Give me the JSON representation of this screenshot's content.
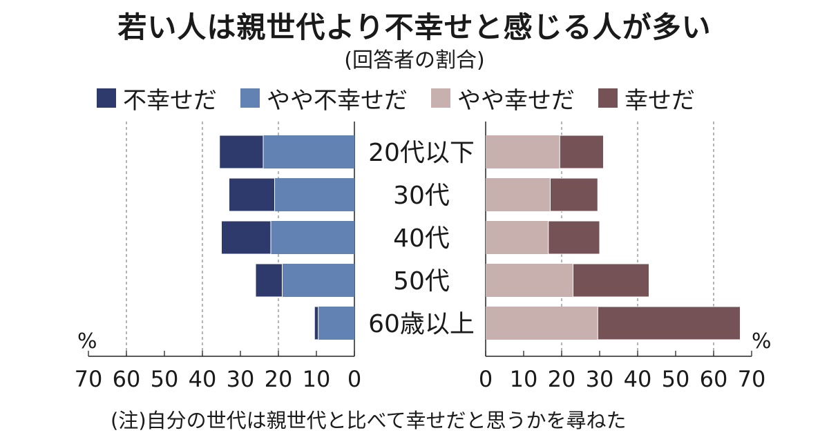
{
  "title": "若い人は親世代より不幸せと感じる人が多い",
  "subtitle": "(回答者の割合)",
  "note": "(注)自分の世代は親世代と比べて幸せだと思うかを尋ねた",
  "colors": {
    "very_unhappy": "#2e3a6b",
    "somewhat_unhappy": "#6282b3",
    "somewhat_happy": "#c7b0ad",
    "happy": "#755256"
  },
  "legend": [
    {
      "label": "不幸せだ",
      "color": "#2e3a6b"
    },
    {
      "label": "やや不幸せだ",
      "color": "#6282b3"
    },
    {
      "label": "やや幸せだ",
      "color": "#c7b0ad"
    },
    {
      "label": "幸せだ",
      "color": "#755256"
    }
  ],
  "chart_data": {
    "type": "bar",
    "orientation": "horizontal-diverging-stacked",
    "categories": [
      "20代以下",
      "30代",
      "40代",
      "50代",
      "60歳以上"
    ],
    "series": [
      {
        "name": "不幸せだ",
        "side": "left",
        "values": [
          11.5,
          12,
          13,
          7,
          1
        ]
      },
      {
        "name": "やや不幸せだ",
        "side": "left",
        "values": [
          24,
          21,
          22,
          19,
          9.5
        ]
      },
      {
        "name": "やや幸せだ",
        "side": "right",
        "values": [
          19.5,
          17,
          16.5,
          23,
          29.5
        ]
      },
      {
        "name": "幸せだ",
        "side": "right",
        "values": [
          11.5,
          12.5,
          13.5,
          20,
          37.5
        ]
      }
    ],
    "left_ticks": [
      "70",
      "60",
      "50",
      "40",
      "30",
      "20",
      "10",
      "0"
    ],
    "right_ticks": [
      "0",
      "10",
      "20",
      "30",
      "40",
      "50",
      "60",
      "70"
    ],
    "unit": "%",
    "xlim": [
      0,
      70
    ],
    "gridlines": [
      20,
      40,
      60
    ],
    "grid": "dashed"
  }
}
